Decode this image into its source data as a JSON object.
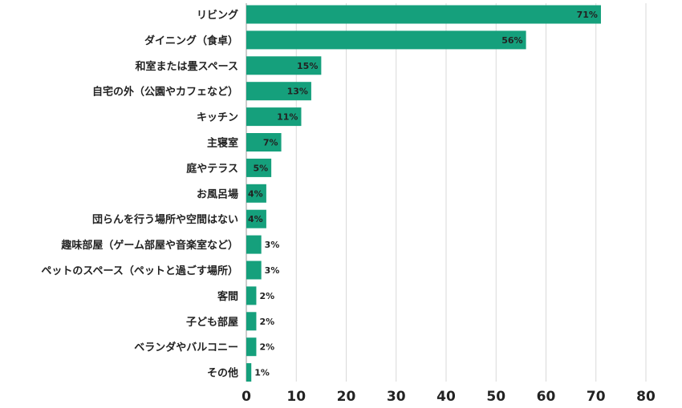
{
  "chart_data": {
    "type": "bar",
    "orientation": "horizontal",
    "categories": [
      "リビング",
      "ダイニング（食卓）",
      "和室または畳スペース",
      "自宅の外（公園やカフェなど）",
      "キッチン",
      "主寝室",
      "庭やテラス",
      "お風呂場",
      "団らんを行う場所や空間はない",
      "趣味部屋（ゲーム部屋や音楽室など）",
      "ペットのスペース（ペットと過ごす場所）",
      "客間",
      "子ども部屋",
      "ベランダやバルコニー",
      "その他"
    ],
    "values": [
      71,
      56,
      15,
      13,
      11,
      7,
      5,
      4,
      4,
      3,
      3,
      2,
      2,
      2,
      1
    ],
    "data_labels": [
      "71%",
      "56%",
      "15%",
      "13%",
      "11%",
      "7%",
      "5%",
      "4%",
      "4%",
      "3%",
      "3%",
      "2%",
      "2%",
      "2%",
      "1%"
    ],
    "xticks": [
      "0",
      "10",
      "20",
      "30",
      "40",
      "50",
      "60",
      "70",
      "80"
    ],
    "xlim": [
      0,
      80
    ],
    "grid": true,
    "bar_color": "#15a07c",
    "title": "",
    "xlabel": "",
    "ylabel": ""
  }
}
